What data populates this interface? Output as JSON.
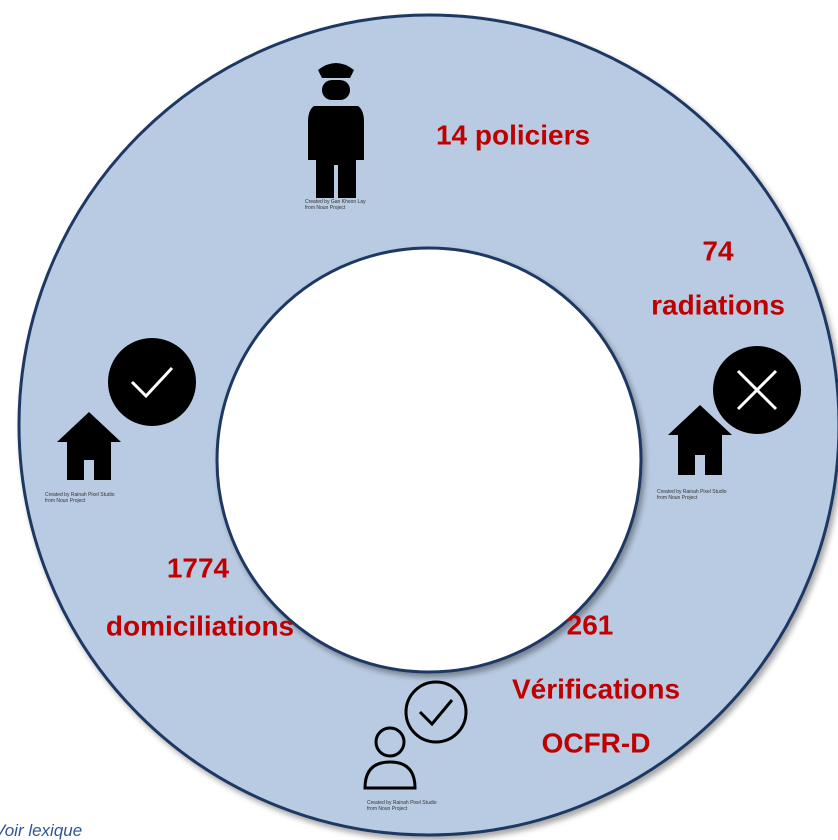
{
  "items": [
    {
      "text": [
        "14 policiers"
      ],
      "credit": [
        "Created by Gan Khoon Lay",
        "from Noun Project"
      ]
    },
    {
      "text": [
        "74",
        "radiations"
      ],
      "credit": [
        "Created by Rainah Pixel Studio",
        "from Noun Project"
      ]
    },
    {
      "text": [
        "1774",
        "domiciliations"
      ],
      "credit": [
        "Created by Rainah Pixel Studio",
        "from Noun Project"
      ]
    },
    {
      "text": [
        "261",
        "Vérifications",
        "OCFR-D"
      ],
      "credit": [
        "Created by Rainah Pixel Studio",
        "from Noun Project"
      ]
    }
  ],
  "footer": "Voir lexique"
}
